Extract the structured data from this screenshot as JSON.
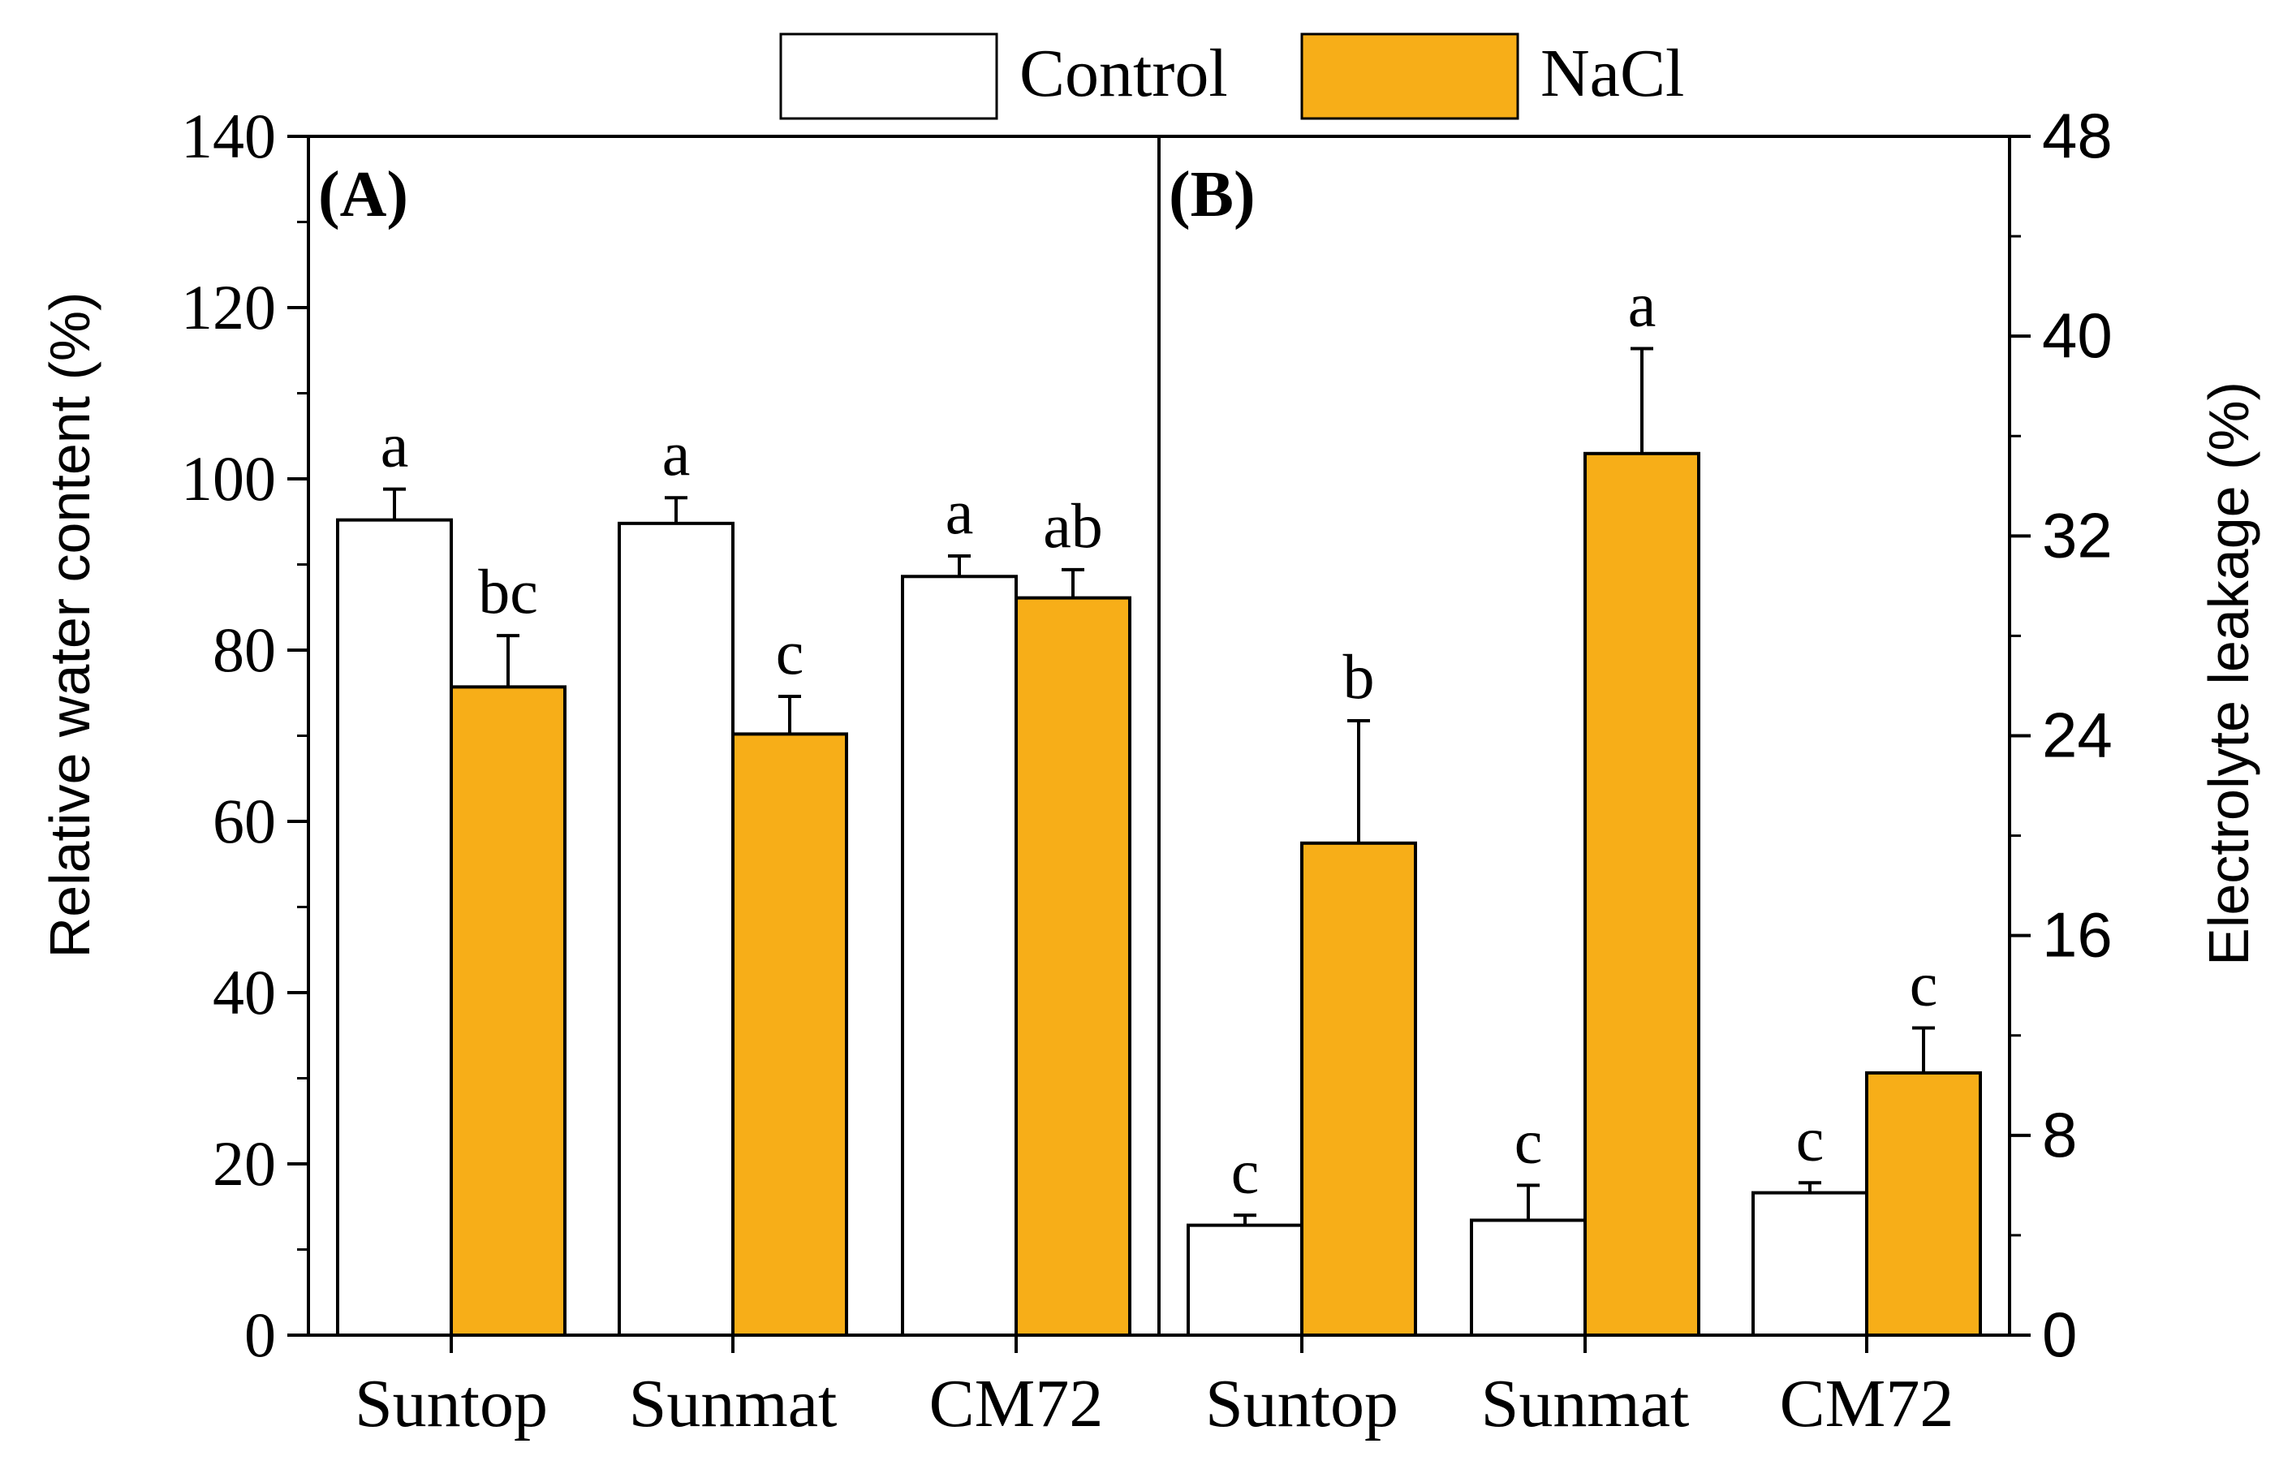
{
  "legend": {
    "entries": [
      {
        "label": "Control",
        "color": "#ffffff"
      },
      {
        "label": "NaCl",
        "color": "#f7ae18"
      }
    ]
  },
  "chart_data": [
    {
      "panel": "(A)",
      "type": "bar",
      "categories": [
        "Suntop",
        "Sunmat",
        "CM72"
      ],
      "ylabel": "Relative water content (%)",
      "ylim": [
        0,
        140
      ],
      "yticks": [
        "0",
        "20",
        "40",
        "60",
        "80",
        "100",
        "120",
        "140"
      ],
      "axis_side": "left",
      "series": [
        {
          "name": "Control",
          "color": "#ffffff",
          "values": [
            95.2,
            94.8,
            88.6
          ],
          "errors": [
            3.6,
            3.0,
            2.4
          ],
          "letters": [
            "a",
            "a",
            "a"
          ]
        },
        {
          "name": "NaCl",
          "color": "#f7ae18",
          "values": [
            75.7,
            70.2,
            86.1
          ],
          "errors": [
            6.0,
            4.4,
            3.3
          ],
          "letters": [
            "bc",
            "c",
            "ab"
          ]
        }
      ]
    },
    {
      "panel": "(B)",
      "type": "bar",
      "categories": [
        "Suntop",
        "Sunmat",
        "CM72"
      ],
      "ylabel": "Electrolyte leakage (%)",
      "ylim": [
        0,
        48
      ],
      "yticks": [
        "0",
        "8",
        "16",
        "24",
        "32",
        "40",
        "48"
      ],
      "axis_side": "right",
      "series": [
        {
          "name": "Control",
          "color": "#ffffff",
          "values": [
            4.4,
            4.6,
            5.7
          ],
          "errors": [
            0.4,
            1.4,
            0.4
          ],
          "letters": [
            "c",
            "c",
            "c"
          ]
        },
        {
          "name": "NaCl",
          "color": "#f7ae18",
          "values": [
            19.7,
            35.3,
            10.5
          ],
          "errors": [
            4.9,
            4.2,
            1.8
          ],
          "letters": [
            "b",
            "a",
            "c"
          ]
        }
      ]
    }
  ]
}
